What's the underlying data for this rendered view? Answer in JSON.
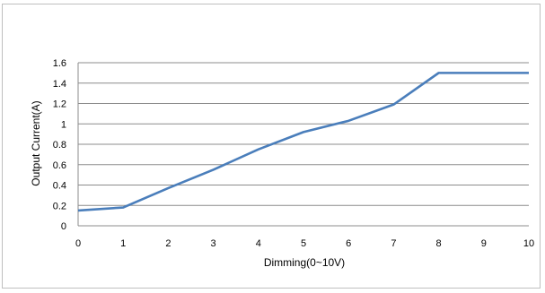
{
  "chart_data": {
    "type": "line",
    "x": [
      0,
      1,
      2,
      3,
      4,
      5,
      6,
      7,
      8,
      9,
      10
    ],
    "series": [
      {
        "values": [
          0.15,
          0.18,
          0.37,
          0.55,
          0.75,
          0.92,
          1.03,
          1.19,
          1.5,
          1.5,
          1.5
        ]
      }
    ],
    "xlabel": "Dimming(0~10V)",
    "ylabel": "Output Current(A)",
    "xlim": [
      0,
      10
    ],
    "ylim": [
      0,
      1.6
    ],
    "yticks": [
      "0",
      "0.2",
      "0.4",
      "0.6",
      "0.8",
      "1",
      "1.2",
      "1.4",
      "1.6"
    ],
    "xticks": [
      "0",
      "1",
      "2",
      "3",
      "4",
      "5",
      "6",
      "7",
      "8",
      "9",
      "10"
    ],
    "grid": "horizontal",
    "line_color": "#4a7ebb",
    "grid_color": "#8c8c8c"
  }
}
